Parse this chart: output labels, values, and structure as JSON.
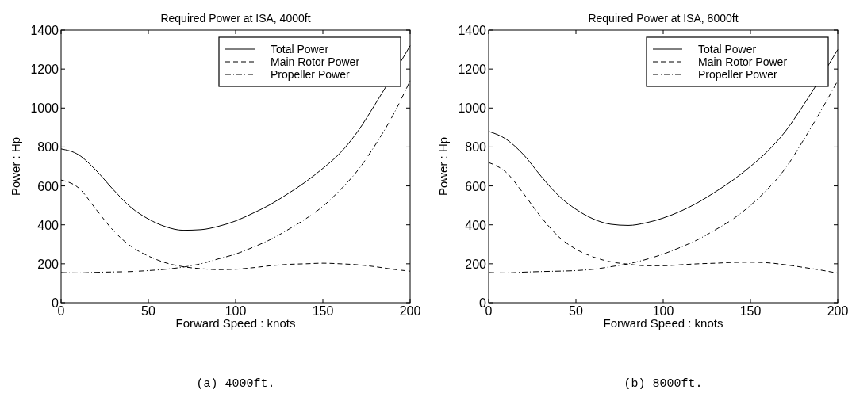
{
  "chart_data": [
    {
      "type": "line",
      "title": "Required Power at ISA, 4000ft",
      "xlabel": "Forward Speed : knots",
      "ylabel": "Power : Hp",
      "annotations": [
        "(a) 4000ft."
      ],
      "x": [
        0,
        10,
        20,
        30,
        40,
        50,
        60,
        70,
        80,
        90,
        100,
        110,
        120,
        130,
        140,
        150,
        160,
        170,
        180,
        190,
        200
      ],
      "xlim": [
        0,
        200
      ],
      "xticks": [
        0,
        50,
        100,
        150,
        200
      ],
      "ylim": [
        0,
        1400
      ],
      "yticks": [
        0,
        200,
        400,
        600,
        800,
        1000,
        1200,
        1400
      ],
      "legend": "top right",
      "grid": false,
      "series": [
        {
          "name": "Total Power",
          "color": "#000000",
          "line_style": "solid",
          "x": [
            0,
            10,
            20,
            30,
            40,
            50,
            60,
            70,
            80,
            90,
            100,
            110,
            120,
            130,
            140,
            150,
            160,
            170,
            180,
            200
          ],
          "values": [
            790,
            760,
            680,
            580,
            490,
            430,
            390,
            372,
            375,
            392,
            420,
            460,
            505,
            560,
            620,
            690,
            770,
            880,
            1020,
            1320
          ]
        },
        {
          "name": "Main Rotor Power",
          "color": "#000000",
          "line_style": "dashed",
          "values": [
            630,
            590,
            480,
            370,
            290,
            240,
            205,
            185,
            175,
            170,
            172,
            180,
            190,
            197,
            200,
            203,
            200,
            195,
            185,
            172,
            162
          ]
        },
        {
          "name": "Propeller Power",
          "color": "#000000",
          "line_style": "dotted",
          "values": [
            155,
            153,
            156,
            158,
            160,
            165,
            172,
            183,
            200,
            225,
            250,
            285,
            325,
            375,
            430,
            495,
            580,
            680,
            810,
            960,
            1140
          ]
        }
      ]
    },
    {
      "type": "line",
      "title": "Required Power at ISA, 8000ft",
      "xlabel": "Forward Speed : knots",
      "ylabel": "Power : Hp",
      "annotations": [
        "(b) 8000ft."
      ],
      "x": [
        0,
        10,
        20,
        30,
        40,
        50,
        60,
        70,
        80,
        90,
        100,
        110,
        120,
        130,
        140,
        150,
        160,
        170,
        180,
        190,
        200
      ],
      "xlim": [
        0,
        200
      ],
      "xticks": [
        0,
        50,
        100,
        150,
        200
      ],
      "ylim": [
        0,
        1400
      ],
      "yticks": [
        0,
        200,
        400,
        600,
        800,
        1000,
        1200,
        1400
      ],
      "legend": "top right",
      "grid": false,
      "series": [
        {
          "name": "Total Power",
          "color": "#000000",
          "line_style": "solid",
          "x": [
            0,
            10,
            20,
            30,
            40,
            50,
            60,
            70,
            80,
            90,
            100,
            110,
            120,
            130,
            140,
            150,
            160,
            170,
            180,
            200
          ],
          "values": [
            880,
            840,
            760,
            650,
            550,
            480,
            430,
            403,
            397,
            410,
            435,
            470,
            515,
            570,
            630,
            700,
            780,
            880,
            1010,
            1300
          ]
        },
        {
          "name": "Main Rotor Power",
          "color": "#000000",
          "line_style": "dashed",
          "values": [
            720,
            670,
            560,
            440,
            340,
            275,
            235,
            210,
            198,
            190,
            190,
            195,
            200,
            203,
            207,
            208,
            205,
            195,
            182,
            168,
            152
          ]
        },
        {
          "name": "Propeller Power",
          "color": "#000000",
          "line_style": "dotted",
          "values": [
            155,
            153,
            157,
            160,
            162,
            165,
            172,
            185,
            200,
            222,
            250,
            285,
            325,
            375,
            430,
            500,
            585,
            690,
            830,
            980,
            1140
          ]
        }
      ]
    }
  ]
}
